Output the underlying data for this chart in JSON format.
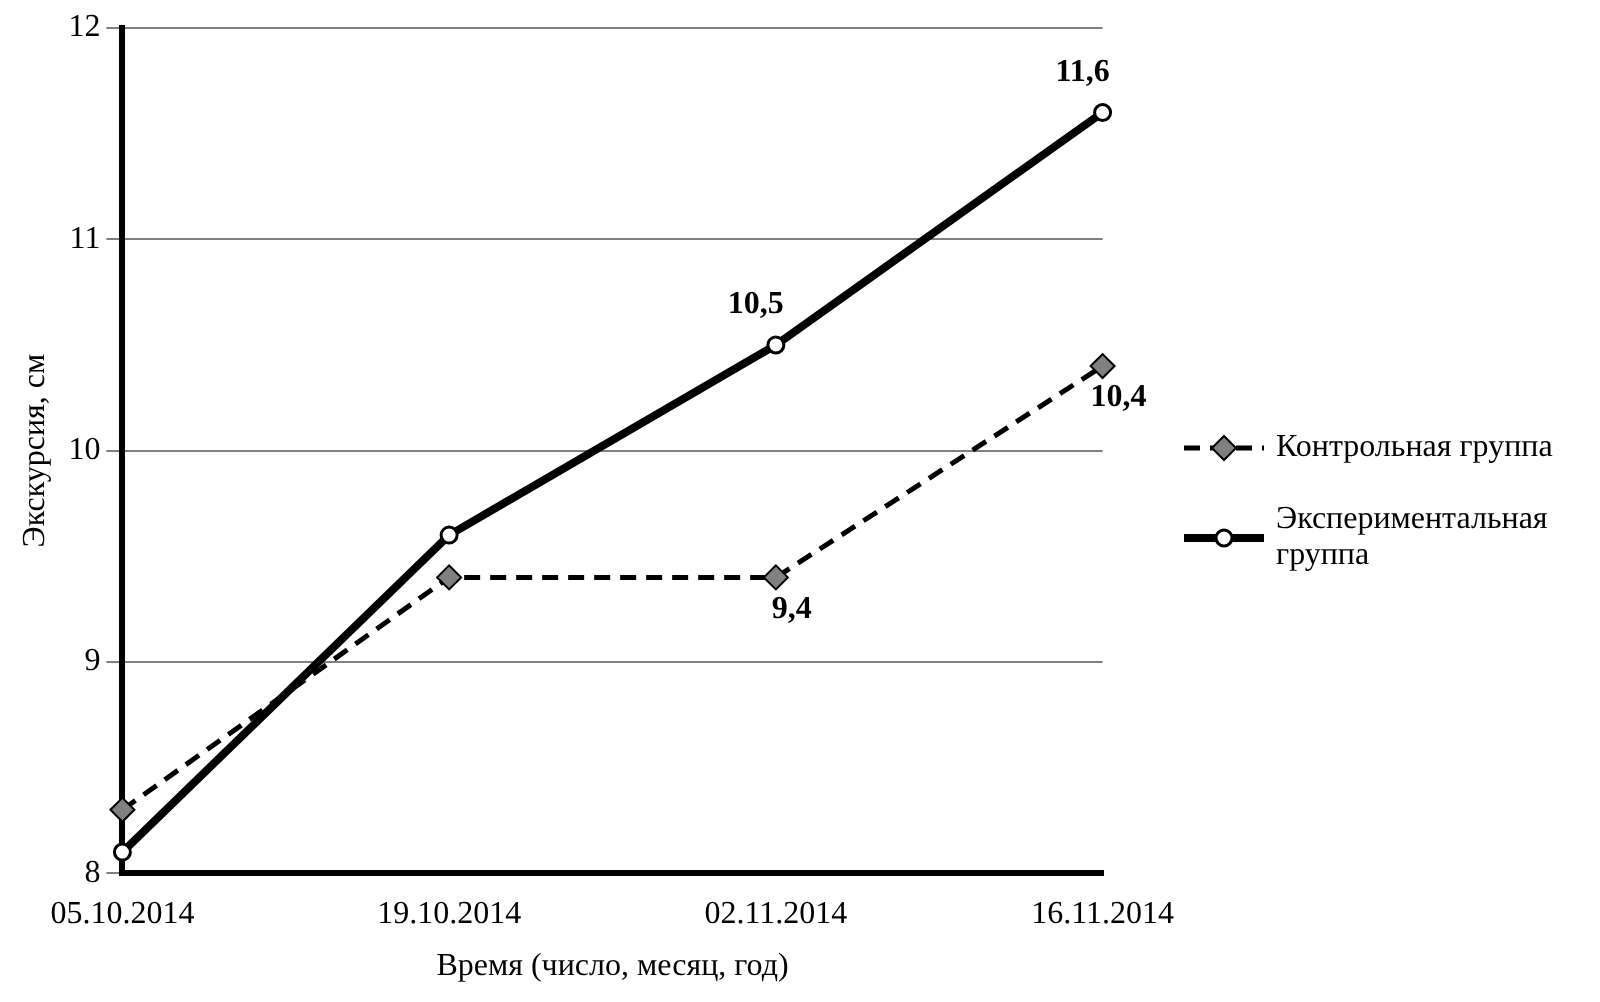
{
  "chart_data": {
    "type": "line",
    "xlabel": "Время (число, месяц, год)",
    "ylabel": "Экскурсия, см",
    "categories": [
      "05.10.2014",
      "19.10.2014",
      "02.11.2014",
      "16.11.2014"
    ],
    "series": [
      {
        "name": "Контрольная группа",
        "color": "#000000",
        "values": [
          8.3,
          9.4,
          9.4,
          10.4
        ],
        "value_labels": [
          null,
          null,
          "9,4",
          "10,4"
        ],
        "marker": "diamond",
        "line_style": "dashed"
      },
      {
        "name": "Экспериментальная группа",
        "color": "#000000",
        "values": [
          8.1,
          9.6,
          10.5,
          11.6
        ],
        "value_labels": [
          null,
          null,
          "10,5",
          "11,6"
        ],
        "marker": "circle",
        "line_style": "solid"
      }
    ],
    "ylim": [
      8,
      12
    ],
    "yticks": [
      8,
      9,
      10,
      11,
      12
    ],
    "grid": "y",
    "legend": "right"
  }
}
